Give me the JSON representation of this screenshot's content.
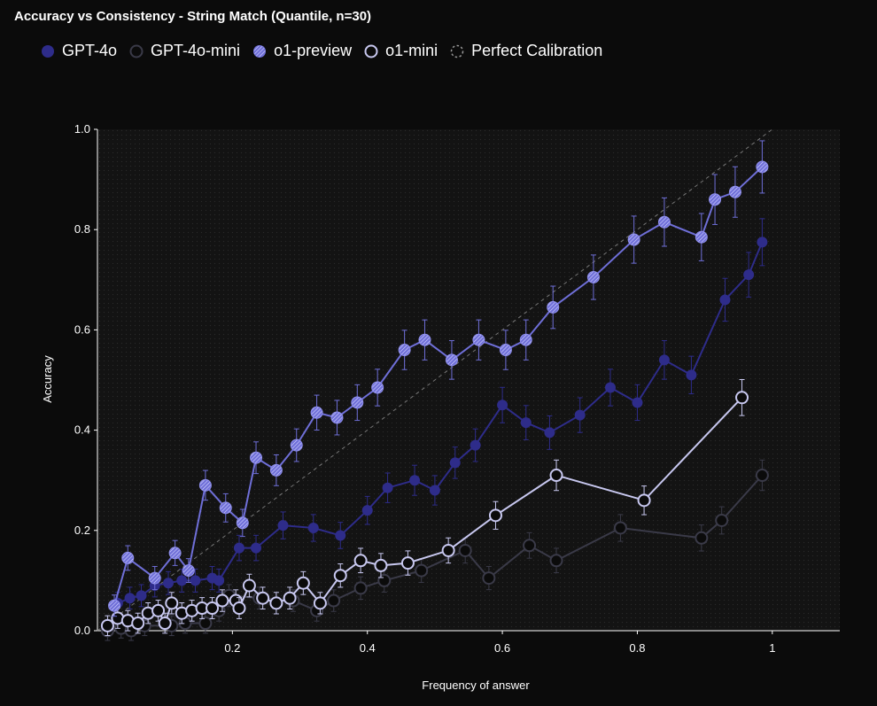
{
  "chart_data": {
    "type": "line",
    "title": "Accuracy vs Consistency - String Match (Quantile, n=30)",
    "xlabel": "Frequency of answer",
    "ylabel": "Accuracy",
    "xlim": [
      0,
      1.1
    ],
    "ylim": [
      0,
      1.0
    ],
    "x_ticks": [
      "0.2",
      "0.4",
      "0.6",
      "0.8",
      "1"
    ],
    "x_tick_values": [
      0.2,
      0.4,
      0.6,
      0.8,
      1.0
    ],
    "y_ticks": [
      "0.0",
      "0.2",
      "0.4",
      "0.6",
      "0.8",
      "1.0"
    ],
    "y_tick_values": [
      0,
      0.2,
      0.4,
      0.6,
      0.8,
      1.0
    ],
    "grid": "dotted background",
    "legend_position": "top-left",
    "series": [
      {
        "name": "GPT-4o",
        "color": "#2e2c8a",
        "marker": "filled",
        "points": [
          [
            0.03,
            0.055
          ],
          [
            0.048,
            0.065
          ],
          [
            0.065,
            0.07
          ],
          [
            0.085,
            0.09
          ],
          [
            0.105,
            0.095
          ],
          [
            0.125,
            0.1
          ],
          [
            0.145,
            0.1
          ],
          [
            0.17,
            0.105
          ],
          [
            0.18,
            0.1
          ],
          [
            0.21,
            0.165
          ],
          [
            0.235,
            0.165
          ],
          [
            0.275,
            0.21
          ],
          [
            0.32,
            0.205
          ],
          [
            0.36,
            0.19
          ],
          [
            0.4,
            0.24
          ],
          [
            0.43,
            0.285
          ],
          [
            0.47,
            0.3
          ],
          [
            0.5,
            0.28
          ],
          [
            0.53,
            0.335
          ],
          [
            0.56,
            0.37
          ],
          [
            0.6,
            0.45
          ],
          [
            0.635,
            0.415
          ],
          [
            0.67,
            0.395
          ],
          [
            0.715,
            0.43
          ],
          [
            0.76,
            0.485
          ],
          [
            0.8,
            0.455
          ],
          [
            0.84,
            0.54
          ],
          [
            0.88,
            0.51
          ],
          [
            0.93,
            0.66
          ],
          [
            0.965,
            0.71
          ],
          [
            0.985,
            0.775
          ]
        ]
      },
      {
        "name": "GPT-4o-mini",
        "color": "#3a3a48",
        "marker": "hollow",
        "points": [
          [
            0.015,
            0.0
          ],
          [
            0.035,
            0.005
          ],
          [
            0.05,
            0.0
          ],
          [
            0.07,
            0.01
          ],
          [
            0.11,
            0.01
          ],
          [
            0.13,
            0.015
          ],
          [
            0.16,
            0.015
          ],
          [
            0.18,
            0.04
          ],
          [
            0.195,
            0.07
          ],
          [
            0.24,
            0.065
          ],
          [
            0.29,
            0.06
          ],
          [
            0.325,
            0.04
          ],
          [
            0.35,
            0.06
          ],
          [
            0.39,
            0.085
          ],
          [
            0.425,
            0.1
          ],
          [
            0.48,
            0.12
          ],
          [
            0.545,
            0.16
          ],
          [
            0.58,
            0.105
          ],
          [
            0.64,
            0.17
          ],
          [
            0.68,
            0.14
          ],
          [
            0.775,
            0.205
          ],
          [
            0.895,
            0.185
          ],
          [
            0.925,
            0.22
          ],
          [
            0.985,
            0.31
          ]
        ]
      },
      {
        "name": "o1-preview",
        "color": "#6f6fd8",
        "marker": "hatched",
        "points": [
          [
            0.025,
            0.05
          ],
          [
            0.045,
            0.145
          ],
          [
            0.085,
            0.105
          ],
          [
            0.115,
            0.155
          ],
          [
            0.135,
            0.12
          ],
          [
            0.16,
            0.29
          ],
          [
            0.19,
            0.245
          ],
          [
            0.215,
            0.215
          ],
          [
            0.235,
            0.345
          ],
          [
            0.265,
            0.32
          ],
          [
            0.295,
            0.37
          ],
          [
            0.325,
            0.435
          ],
          [
            0.355,
            0.425
          ],
          [
            0.385,
            0.455
          ],
          [
            0.415,
            0.485
          ],
          [
            0.455,
            0.56
          ],
          [
            0.485,
            0.58
          ],
          [
            0.525,
            0.54
          ],
          [
            0.565,
            0.58
          ],
          [
            0.605,
            0.56
          ],
          [
            0.635,
            0.58
          ],
          [
            0.675,
            0.645
          ],
          [
            0.735,
            0.705
          ],
          [
            0.795,
            0.78
          ],
          [
            0.84,
            0.815
          ],
          [
            0.895,
            0.785
          ],
          [
            0.915,
            0.86
          ],
          [
            0.945,
            0.875
          ],
          [
            0.985,
            0.925
          ]
        ]
      },
      {
        "name": "o1-mini",
        "color": "#c8c8f0",
        "marker": "hollow",
        "points": [
          [
            0.015,
            0.01
          ],
          [
            0.03,
            0.025
          ],
          [
            0.045,
            0.02
          ],
          [
            0.06,
            0.015
          ],
          [
            0.075,
            0.035
          ],
          [
            0.09,
            0.04
          ],
          [
            0.1,
            0.015
          ],
          [
            0.11,
            0.055
          ],
          [
            0.125,
            0.035
          ],
          [
            0.14,
            0.04
          ],
          [
            0.155,
            0.045
          ],
          [
            0.17,
            0.045
          ],
          [
            0.185,
            0.06
          ],
          [
            0.205,
            0.06
          ],
          [
            0.21,
            0.045
          ],
          [
            0.225,
            0.09
          ],
          [
            0.245,
            0.065
          ],
          [
            0.265,
            0.055
          ],
          [
            0.285,
            0.065
          ],
          [
            0.305,
            0.095
          ],
          [
            0.33,
            0.055
          ],
          [
            0.36,
            0.11
          ],
          [
            0.39,
            0.14
          ],
          [
            0.42,
            0.13
          ],
          [
            0.46,
            0.135
          ],
          [
            0.52,
            0.16
          ],
          [
            0.59,
            0.23
          ],
          [
            0.68,
            0.31
          ],
          [
            0.81,
            0.26
          ],
          [
            0.955,
            0.465
          ]
        ]
      },
      {
        "name": "Perfect Calibration",
        "color": "#777777",
        "marker": "dashed-line",
        "points": [
          [
            0,
            0
          ],
          [
            1,
            1
          ]
        ]
      }
    ]
  },
  "colors": {
    "background": "#0b0b0b",
    "plot_background": "#141414",
    "text": "#ffffff"
  }
}
